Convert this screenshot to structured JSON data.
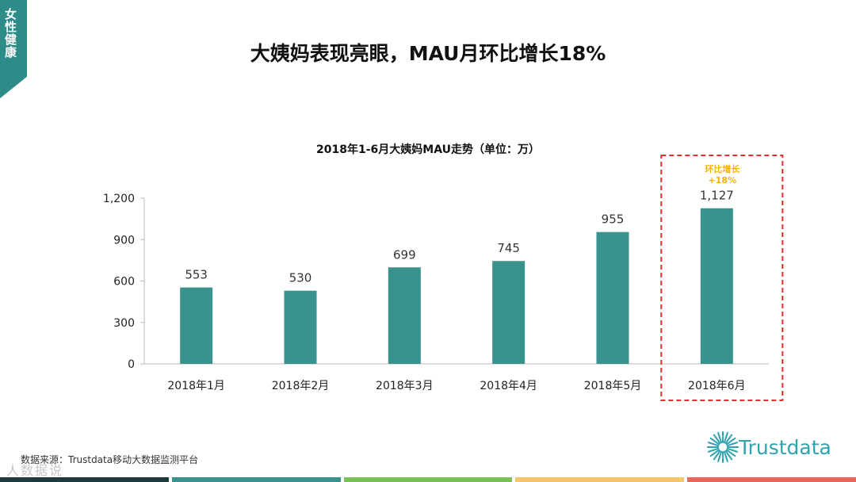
{
  "side_tab": "女性健康",
  "page_title": "大姨妈表现亮眼，MAU月环比增长18%",
  "source": "数据来源：Trustdata移动大数据监测平台",
  "watermark": "人数据说",
  "logo_text": "Trustdata",
  "colors": {
    "bar": "#3a928d",
    "accent_tab": "#2e8c88",
    "highlight_box": "#e03030",
    "annotation": "#f0b400",
    "logo": "#2fa3b0",
    "bottom_bar": [
      "#1f3a3a",
      "#3a928d",
      "#7bbf5a",
      "#f2c66b",
      "#e8675a"
    ]
  },
  "chart_data": {
    "type": "bar",
    "title": "2018年1-6月大姨妈MAU走势（单位：万）",
    "categories": [
      "2018年1月",
      "2018年2月",
      "2018年3月",
      "2018年4月",
      "2018年5月",
      "2018年6月"
    ],
    "values": [
      553,
      530,
      699,
      745,
      955,
      1127
    ],
    "value_labels": [
      "553",
      "530",
      "699",
      "745",
      "955",
      "1,127"
    ],
    "yticks": [
      0,
      300,
      600,
      900,
      1200
    ],
    "ytick_labels": [
      "0",
      "300",
      "600",
      "900",
      "1,200"
    ],
    "ylim": [
      0,
      1200
    ],
    "grid": false,
    "highlight": {
      "category": "2018年6月",
      "line1": "环比增长",
      "line2": "+18%"
    }
  }
}
